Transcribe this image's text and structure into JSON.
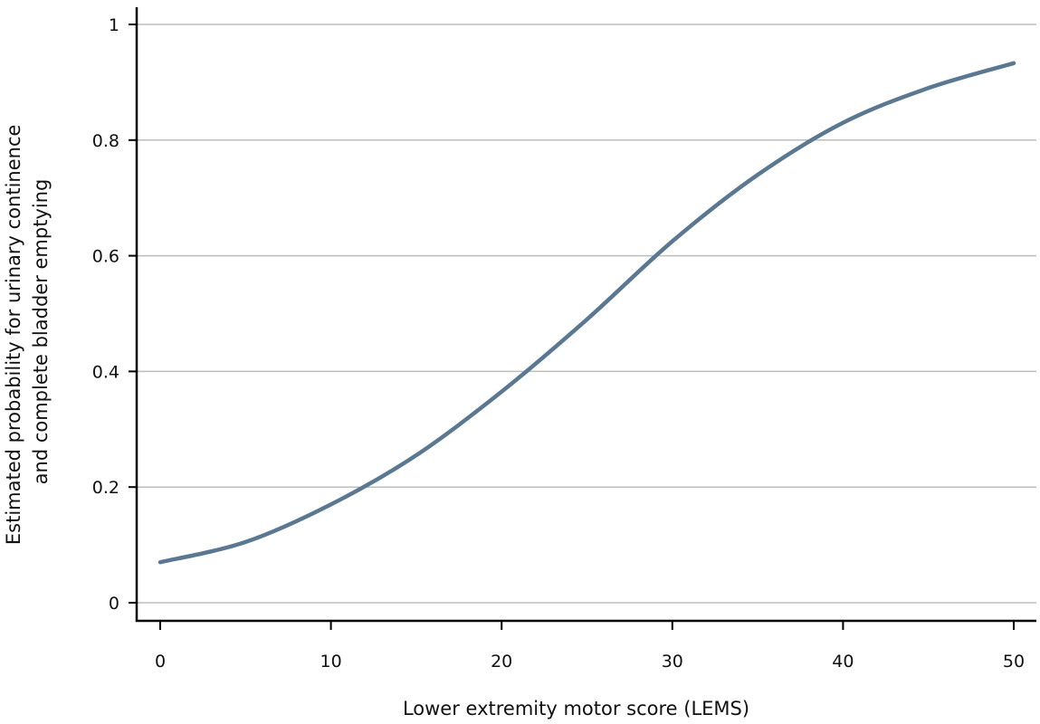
{
  "chart_data": {
    "type": "line",
    "title": "",
    "xlabel": "Lower extremity motor score (LEMS)",
    "ylabel_lines": [
      "Estimated probability for urinary continence",
      "and complete bladder emptying"
    ],
    "xlim": [
      0,
      50
    ],
    "ylim": [
      0,
      1
    ],
    "x_ticks": [
      0,
      10,
      20,
      30,
      40,
      50
    ],
    "y_ticks": [
      0,
      0.2,
      0.4,
      0.6,
      0.8,
      1
    ],
    "grid": "horizontal",
    "legend": "none",
    "colors": {
      "line": "#5a7891",
      "grid": "#bdbdbd",
      "axis": "#000000"
    },
    "series": [
      {
        "x": [
          0,
          5,
          10,
          15,
          20,
          25,
          30,
          35,
          40,
          45,
          50
        ],
        "values": [
          0.07,
          0.105,
          0.17,
          0.255,
          0.365,
          0.49,
          0.625,
          0.74,
          0.83,
          0.89,
          0.933
        ]
      }
    ]
  }
}
